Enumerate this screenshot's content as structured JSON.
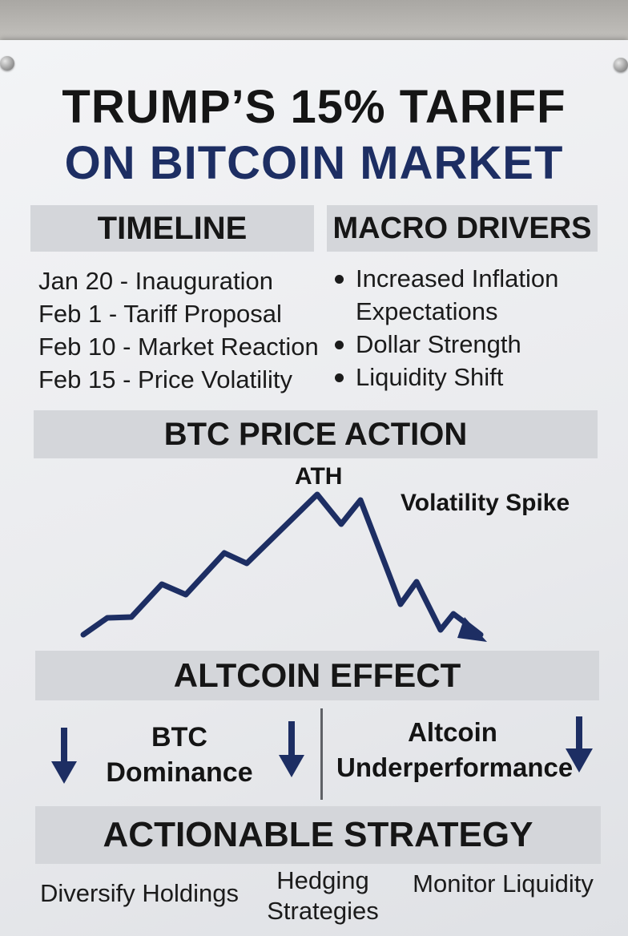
{
  "title": {
    "line1": "TRUMP’S 15% TARIFF",
    "line2": "ON BITCOIN MARKET"
  },
  "timeline": {
    "heading": "TIMELINE",
    "items": [
      "Jan 20 - Inauguration",
      "Feb 1 - Tariff Proposal",
      "Feb 10 - Market Reaction",
      "Feb 15 - Price Volatility"
    ]
  },
  "macro": {
    "heading": "MACRO DRIVERS",
    "items": [
      "Increased Inflation Expectations",
      "Dollar Strength",
      "Liquidity Shift"
    ]
  },
  "btc_price": {
    "heading": "BTC PRICE ACTION",
    "peak_label": "ATH",
    "spike_label": "Volatility Spike"
  },
  "altcoin": {
    "heading": "ALTCOIN EFFECT",
    "left_label": "BTC Dominance",
    "right_label": "Altcoin Underperformance"
  },
  "strategy": {
    "heading": "ACTIONABLE STRATEGY",
    "items": [
      "Diversify Holdings",
      "Hedging Strategies",
      "Monitor Liquidity"
    ]
  },
  "colors": {
    "navy": "#1d2e63",
    "ink": "#151515",
    "band": "#d4d6da",
    "board": "#eceef1"
  },
  "icons": [
    "screw-icon",
    "down-arrow-icon",
    "trend-line-icon"
  ]
}
